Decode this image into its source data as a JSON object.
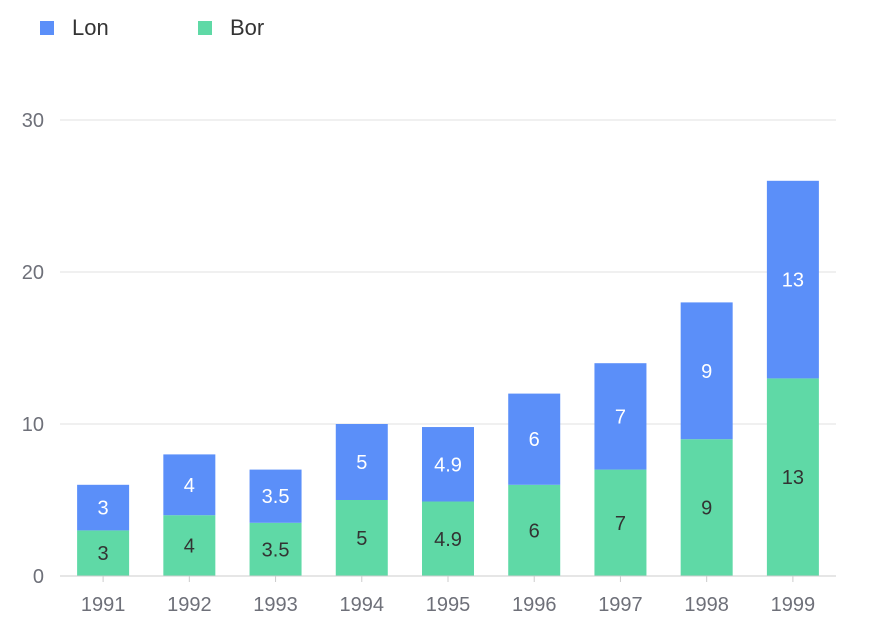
{
  "chart_data": {
    "type": "bar",
    "stacked": true,
    "categories": [
      "1991",
      "1992",
      "1993",
      "1994",
      "1995",
      "1996",
      "1997",
      "1998",
      "1999"
    ],
    "series": [
      {
        "name": "Bor",
        "color": "#5fd9a6",
        "label_color": "#333333",
        "values": [
          3,
          4,
          3.5,
          5,
          4.9,
          6,
          7,
          9,
          13
        ]
      },
      {
        "name": "Lon",
        "color": "#5b8ff9",
        "label_color": "#ffffff",
        "values": [
          3,
          4,
          3.5,
          5,
          4.9,
          6,
          7,
          9,
          13
        ]
      }
    ],
    "legend_order": [
      "Lon",
      "Bor"
    ],
    "legend_position": "top-left",
    "ylim": [
      0,
      30
    ],
    "yticks": [
      "0",
      "10",
      "20",
      "30"
    ],
    "grid": true,
    "grid_color": "#e0e0e0",
    "axis_color": "#cccccc"
  }
}
